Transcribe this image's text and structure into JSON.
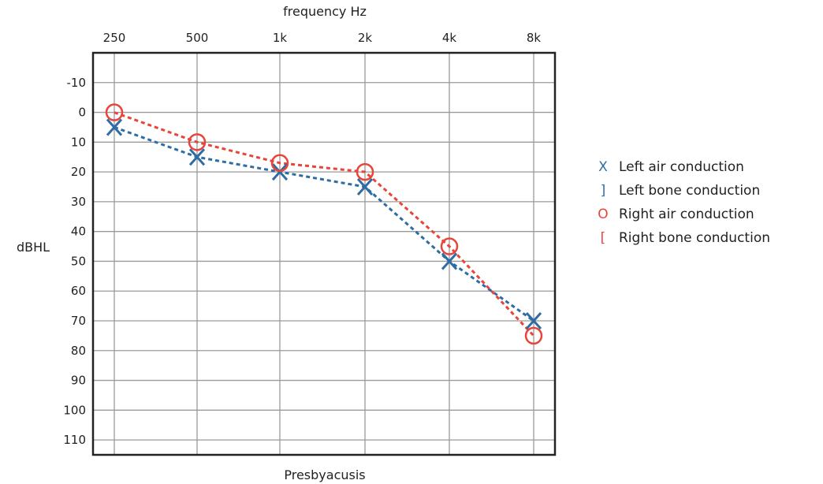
{
  "chart_data": {
    "type": "line",
    "title": "Presbyacusis",
    "xlabel": "frequency Hz",
    "ylabel": "dBHL",
    "categories": [
      "250",
      "500",
      "1k",
      "2k",
      "4k",
      "8k"
    ],
    "y_ticks": [
      "-10",
      "0",
      "10",
      "20",
      "30",
      "40",
      "50",
      "60",
      "70",
      "80",
      "90",
      "100",
      "110"
    ],
    "ylim": [
      -20,
      115
    ],
    "y_inverted": true,
    "grid": true,
    "legend_position": "right",
    "series": [
      {
        "name": "Left air conduction",
        "marker": "x",
        "color": "#2e6da4",
        "values": [
          5,
          15,
          20,
          25,
          50,
          70
        ]
      },
      {
        "name": "Right air conduction",
        "marker": "o",
        "color": "#e8443a",
        "values": [
          0,
          10,
          17,
          20,
          45,
          75
        ]
      }
    ],
    "legend": [
      {
        "symbol": "X",
        "label": "Left air conduction",
        "color": "#2e6da4"
      },
      {
        "symbol": "]",
        "label": "Left bone conduction",
        "color": "#2e6da4"
      },
      {
        "symbol": "O",
        "label": "Right air conduction",
        "color": "#e8443a"
      },
      {
        "symbol": "[",
        "label": "Right bone conduction",
        "color": "#e8443a"
      }
    ]
  }
}
